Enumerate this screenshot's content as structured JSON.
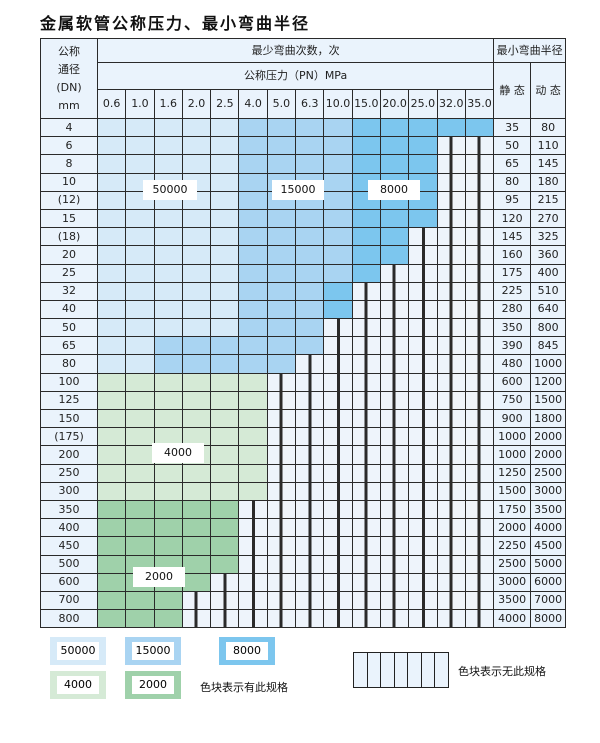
{
  "title": "金属软管公称压力、最小弯曲半径",
  "header": {
    "dn": [
      "公称",
      "通径",
      "(DN)",
      "mm"
    ],
    "cycles": "最少弯曲次数，次",
    "pressure": "公称压力（PN）MPa",
    "radius": "最小弯曲半径",
    "static": "静 态",
    "dynamic": "动 态"
  },
  "pressures": [
    "0.6",
    "1.0",
    "1.6",
    "2.0",
    "2.5",
    "4.0",
    "5.0",
    "6.3",
    "10.0",
    "15.0",
    "20.0",
    "25.0",
    "32.0",
    "35.0"
  ],
  "tier_colors": {
    "50000": "#d6eaf8",
    "15000": "#a9d4f2",
    "8000": "#7cc6ee",
    "4000": "#d5ead6",
    "2000": "#9fd1aa"
  },
  "rows": [
    {
      "dn": "4",
      "s": "35",
      "d": "80",
      "cells": "11111222233333"
    },
    {
      "dn": "6",
      "s": "50",
      "d": "110",
      "cells": "111112222333hh"
    },
    {
      "dn": "8",
      "s": "65",
      "d": "145",
      "cells": "111112222333hh"
    },
    {
      "dn": "10",
      "s": "80",
      "d": "180",
      "cells": "111112222333hh"
    },
    {
      "dn": "(12)",
      "s": "95",
      "d": "215",
      "cells": "111112222333hh"
    },
    {
      "dn": "15",
      "s": "120",
      "d": "270",
      "cells": "111112222333hh"
    },
    {
      "dn": "(18)",
      "s": "145",
      "d": "325",
      "cells": "11111222233hhh"
    },
    {
      "dn": "20",
      "s": "160",
      "d": "360",
      "cells": "11111222233hhh"
    },
    {
      "dn": "25",
      "s": "175",
      "d": "400",
      "cells": "1111122223hhhh"
    },
    {
      "dn": "32",
      "s": "225",
      "d": "510",
      "cells": "111112223hhhhh"
    },
    {
      "dn": "40",
      "s": "280",
      "d": "640",
      "cells": "111112223hhhhh"
    },
    {
      "dn": "50",
      "s": "350",
      "d": "800",
      "cells": "11111222hhhhhh"
    },
    {
      "dn": "65",
      "s": "390",
      "d": "845",
      "cells": "11222222hhhhhh"
    },
    {
      "dn": "80",
      "s": "480",
      "d": "1000",
      "cells": "1122222hhhhhhh"
    },
    {
      "dn": "100",
      "s": "600",
      "d": "1200",
      "cells": "gggggghhhhhhhh"
    },
    {
      "dn": "125",
      "s": "750",
      "d": "1500",
      "cells": "gggggghhhhhhhh"
    },
    {
      "dn": "150",
      "s": "900",
      "d": "1800",
      "cells": "gggggghhhhhhhh"
    },
    {
      "dn": "(175)",
      "s": "1000",
      "d": "2000",
      "cells": "gggggghhhhhhhh"
    },
    {
      "dn": "200",
      "s": "1000",
      "d": "2000",
      "cells": "gggggghhhhhhhh"
    },
    {
      "dn": "250",
      "s": "1250",
      "d": "2500",
      "cells": "gggggghhhhhhhh"
    },
    {
      "dn": "300",
      "s": "1500",
      "d": "3000",
      "cells": "gggggghhhhhhhh"
    },
    {
      "dn": "350",
      "s": "1750",
      "d": "3500",
      "cells": "GGGGGhhhhhhhhh"
    },
    {
      "dn": "400",
      "s": "2000",
      "d": "4000",
      "cells": "GGGGGhhhhhhhhh"
    },
    {
      "dn": "450",
      "s": "2250",
      "d": "4500",
      "cells": "GGGGGhhhhhhhhh"
    },
    {
      "dn": "500",
      "s": "2500",
      "d": "5000",
      "cells": "GGGGGhhhhhhhhh"
    },
    {
      "dn": "600",
      "s": "3000",
      "d": "6000",
      "cells": "GGGGhhhhhhhhhh"
    },
    {
      "dn": "700",
      "s": "3500",
      "d": "7000",
      "cells": "GGGhhhhhhhhhhh"
    },
    {
      "dn": "800",
      "s": "4000",
      "d": "8000",
      "cells": "GGGhhhhhhhhhhh"
    }
  ],
  "region_labels": {
    "a": "50000",
    "b": "15000",
    "c": "8000",
    "d": "4000",
    "e": "2000"
  },
  "legend": {
    "items": [
      "50000",
      "15000",
      "8000",
      "4000",
      "2000"
    ],
    "has_spec": "色块表示有此规格",
    "no_spec": "色块表示无此规格"
  }
}
